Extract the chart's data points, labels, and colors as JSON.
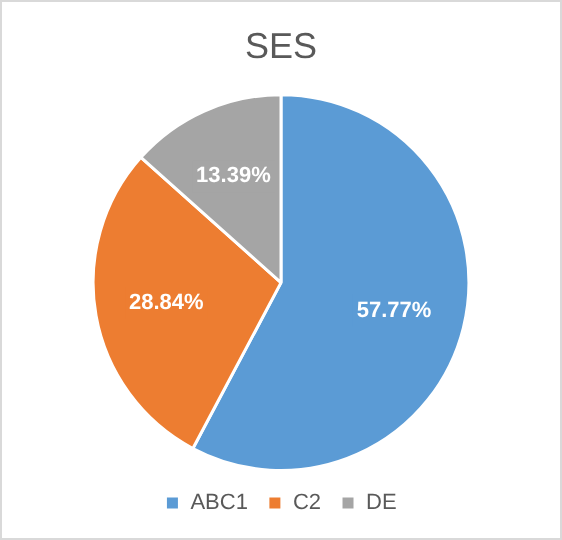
{
  "chart_data": {
    "type": "pie",
    "title": "SES",
    "categories": [
      "ABC1",
      "C2",
      "DE"
    ],
    "values": [
      57.77,
      28.84,
      13.39
    ],
    "colors": [
      "#5b9bd5",
      "#ed7d31",
      "#a5a5a5"
    ],
    "value_labels": [
      "57.77%",
      "28.84%",
      "13.39%"
    ],
    "legend": "bottom"
  }
}
